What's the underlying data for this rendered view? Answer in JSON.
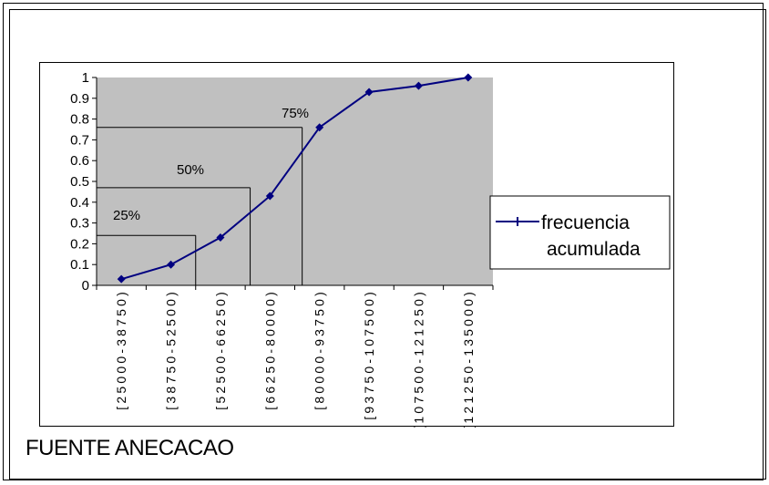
{
  "chart_data": {
    "type": "line",
    "categories": [
      "[25000-38750)",
      "[38750-52500)",
      "[52500-66250)",
      "[66250-80000)",
      "[80000-93750)",
      "[93750-107500)",
      "[107500-121250)",
      "[121250-135000)"
    ],
    "series": [
      {
        "name": "frecuencia acumulada",
        "values": [
          0.03,
          0.1,
          0.23,
          0.43,
          0.76,
          0.93,
          0.96,
          1.0
        ]
      }
    ],
    "ylim": [
      0,
      1
    ],
    "yticks": [
      "0",
      "0.1",
      "0.2",
      "0.3",
      "0.4",
      "0.5",
      "0.6",
      "0.7",
      "0.8",
      "0.9",
      "1"
    ],
    "grid": false,
    "legend": "right",
    "plot_background": "#c0c0c0",
    "series_color": "#000080",
    "annotations": [
      {
        "label": "25%",
        "y": 0.25,
        "x_cat": 2.0
      },
      {
        "label": "50%",
        "y": 0.5,
        "x_cat": 3.0
      },
      {
        "label": "75%",
        "y": 0.75,
        "x_cat": 4.0
      }
    ]
  },
  "source_note": "FUENTE  ANECACAO"
}
